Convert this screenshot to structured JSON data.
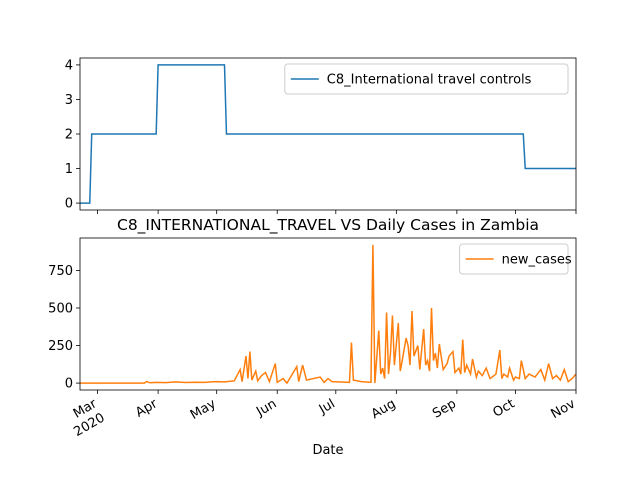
{
  "chart_data": [
    {
      "type": "line",
      "x": [
        -9,
        -4,
        -3,
        30,
        31,
        65,
        66,
        218,
        219,
        245
      ],
      "series": [
        {
          "name": "C8_International travel controls",
          "color": "#1f77b4",
          "values": [
            0,
            0,
            2,
            2,
            4,
            4,
            2,
            2,
            1,
            1
          ]
        }
      ],
      "xlim": [
        -9,
        245
      ],
      "xticks": [
        0,
        31,
        61,
        92,
        122,
        153,
        184,
        214,
        245
      ],
      "ylim": [
        -0.2,
        4.2
      ],
      "yticks": [
        0,
        1,
        2,
        3,
        4
      ],
      "legend": "upper right"
    },
    {
      "type": "line",
      "title": "C8_INTERNATIONAL_TRAVEL VS Daily Cases in Zambia",
      "xlabel": "Date",
      "year_label": "2020",
      "x": [
        -9,
        10,
        24,
        25,
        27,
        30,
        35,
        40,
        45,
        50,
        55,
        60,
        65,
        70,
        73,
        74,
        76,
        77,
        78,
        79,
        81,
        82,
        84,
        86,
        88,
        91,
        92,
        95,
        97,
        102,
        103,
        105,
        107,
        114,
        116,
        118,
        120,
        129,
        130,
        131,
        135,
        140,
        141,
        142,
        144,
        145,
        146,
        147,
        148,
        149,
        150,
        151,
        152,
        154,
        155,
        156,
        158,
        159,
        160,
        161,
        162,
        164,
        165,
        167,
        168,
        169,
        170,
        171,
        172,
        173,
        174,
        175,
        177,
        179,
        180,
        182,
        183,
        185,
        186,
        187,
        188,
        189,
        191,
        192,
        194,
        195,
        197,
        199,
        201,
        204,
        206,
        207,
        208,
        210,
        211,
        213,
        214,
        216,
        217,
        219,
        221,
        224,
        227,
        229,
        231,
        233,
        235,
        237,
        239,
        241,
        243,
        245
      ],
      "series": [
        {
          "name": "new_cases",
          "color": "#ff7f0e",
          "values": [
            0,
            0,
            0,
            10,
            2,
            5,
            3,
            8,
            4,
            6,
            5,
            10,
            8,
            15,
            90,
            10,
            180,
            30,
            210,
            20,
            80,
            15,
            50,
            70,
            10,
            130,
            5,
            30,
            0,
            110,
            10,
            120,
            20,
            40,
            5,
            30,
            10,
            5,
            270,
            20,
            10,
            5,
            920,
            0,
            350,
            60,
            100,
            30,
            470,
            60,
            200,
            450,
            120,
            400,
            80,
            150,
            300,
            250,
            120,
            480,
            180,
            250,
            90,
            360,
            120,
            150,
            80,
            500,
            150,
            200,
            100,
            260,
            90,
            130,
            180,
            210,
            70,
            100,
            60,
            290,
            70,
            120,
            60,
            160,
            40,
            80,
            50,
            100,
            30,
            60,
            220,
            30,
            60,
            40,
            100,
            20,
            40,
            30,
            150,
            30,
            60,
            40,
            90,
            20,
            130,
            30,
            50,
            20,
            90,
            10,
            30,
            60
          ]
        }
      ],
      "xlim": [
        -9,
        245
      ],
      "xticks": [
        {
          "value": 0,
          "label": "Mar"
        },
        {
          "value": 31,
          "label": "Apr"
        },
        {
          "value": 61,
          "label": "May"
        },
        {
          "value": 92,
          "label": "Jun"
        },
        {
          "value": 122,
          "label": "Jul"
        },
        {
          "value": 153,
          "label": "Aug"
        },
        {
          "value": 184,
          "label": "Sep"
        },
        {
          "value": 214,
          "label": "Oct"
        },
        {
          "value": 245,
          "label": "Nov"
        }
      ],
      "ylim": [
        -46,
        966
      ],
      "yticks": [
        0,
        250,
        500,
        750
      ],
      "legend": "upper right"
    }
  ]
}
